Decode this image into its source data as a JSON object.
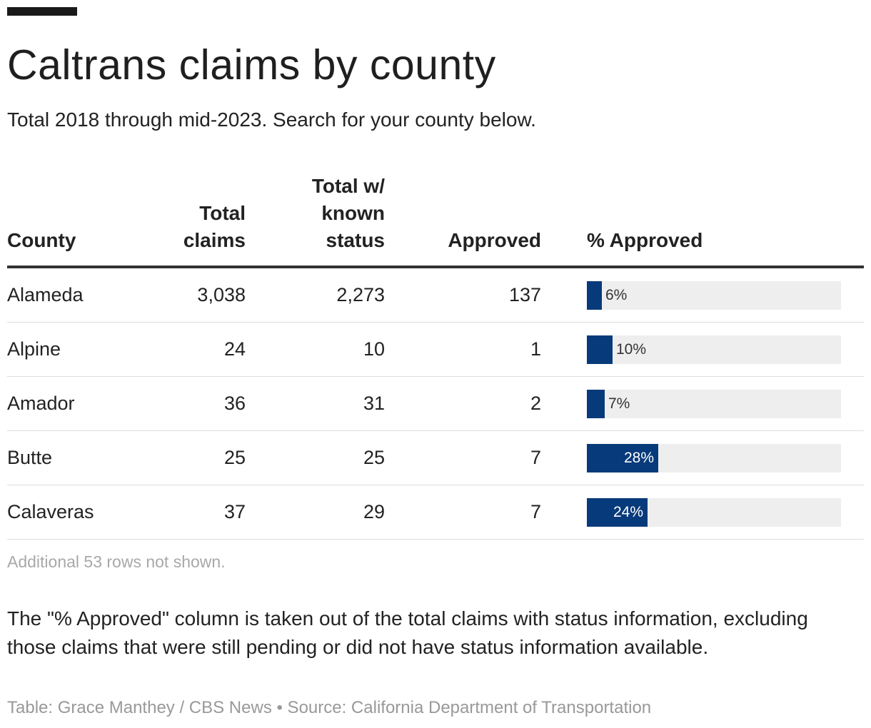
{
  "header": {
    "title": "Caltrans claims by county",
    "subtitle": "Total 2018 through mid-2023. Search for your county below."
  },
  "table": {
    "columns": {
      "county": "County",
      "total": "Total\nclaims",
      "known": "Total w/\nknown\nstatus",
      "approved": "Approved",
      "pct": "% Approved"
    }
  },
  "chart_data": {
    "type": "table",
    "columns": [
      "County",
      "Total claims",
      "Total w/ known status",
      "Approved",
      "% Approved"
    ],
    "rows": [
      {
        "county": "Alameda",
        "total": "3,038",
        "known": "2,273",
        "approved": "137",
        "pct": 6,
        "pct_label": "6%"
      },
      {
        "county": "Alpine",
        "total": "24",
        "known": "10",
        "approved": "1",
        "pct": 10,
        "pct_label": "10%"
      },
      {
        "county": "Amador",
        "total": "36",
        "known": "31",
        "approved": "2",
        "pct": 7,
        "pct_label": "7%"
      },
      {
        "county": "Butte",
        "total": "25",
        "known": "25",
        "approved": "7",
        "pct": 28,
        "pct_label": "28%"
      },
      {
        "county": "Calaveras",
        "total": "37",
        "known": "29",
        "approved": "7",
        "pct": 24,
        "pct_label": "24%"
      }
    ],
    "bar_color": "#073a7a",
    "track_color": "#eeeeee"
  },
  "notes": {
    "rows_hidden": "Additional 53 rows not shown.",
    "footnote": "The \"% Approved\" column is taken out of the total claims with status information, excluding those claims that were still pending or did not have status information available.",
    "credit": "Table: Grace Manthey / CBS News • Source: California Department of Transportation"
  }
}
